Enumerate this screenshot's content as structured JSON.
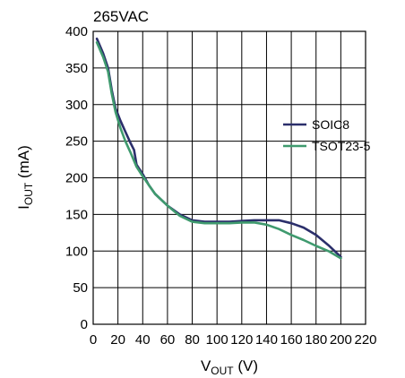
{
  "chart_data": {
    "type": "line",
    "title": "265VAC",
    "xlabel": {
      "main": "V",
      "sub": "OUT",
      "unit": " (V)"
    },
    "ylabel": {
      "main": "I",
      "sub": "OUT",
      "unit": " (mA)"
    },
    "xlim": [
      0,
      220
    ],
    "ylim": [
      0,
      400
    ],
    "x_ticks": [
      0,
      20,
      40,
      60,
      80,
      100,
      120,
      140,
      160,
      180,
      200,
      220
    ],
    "y_ticks": [
      0,
      50,
      100,
      150,
      200,
      250,
      300,
      350,
      400
    ],
    "x_tick_labels": [
      "0",
      "20",
      "40",
      "60",
      "80",
      "100",
      "120",
      "140",
      "160",
      "180",
      "200",
      "220"
    ],
    "y_tick_labels": [
      "0",
      "50",
      "100",
      "150",
      "200",
      "250",
      "300",
      "350",
      "400"
    ],
    "grid": true,
    "legend_position": "right",
    "series": [
      {
        "name": "SOIC8",
        "color": "#2b2f6b",
        "x": [
          3,
          8,
          12,
          15,
          18,
          22,
          26,
          30,
          33,
          35,
          40,
          45,
          50,
          60,
          70,
          80,
          90,
          100,
          110,
          120,
          130,
          140,
          150,
          160,
          170,
          180,
          190,
          200
        ],
        "y": [
          390,
          370,
          350,
          320,
          295,
          278,
          263,
          248,
          238,
          218,
          205,
          190,
          178,
          162,
          150,
          142,
          140,
          140,
          140,
          141,
          142,
          142,
          142,
          138,
          132,
          122,
          108,
          92
        ]
      },
      {
        "name": "TSOT23-5",
        "color": "#3f9a6e",
        "x": [
          3,
          8,
          12,
          15,
          18,
          22,
          26,
          30,
          35,
          40,
          45,
          50,
          60,
          70,
          80,
          90,
          100,
          110,
          120,
          130,
          140,
          150,
          160,
          170,
          180,
          190,
          200
        ],
        "y": [
          385,
          365,
          345,
          315,
          290,
          268,
          250,
          235,
          215,
          202,
          190,
          178,
          162,
          148,
          140,
          138,
          138,
          138,
          139,
          139,
          136,
          130,
          122,
          115,
          107,
          100,
          90
        ]
      }
    ]
  }
}
